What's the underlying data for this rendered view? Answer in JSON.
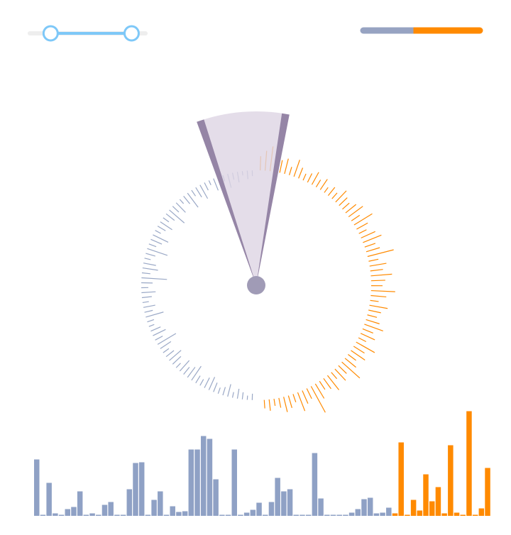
{
  "chart_data": {
    "type": "radial-dashboard",
    "slider": {
      "range": [
        0.18,
        0.88
      ],
      "limits": [
        0,
        1
      ],
      "color": "#7ec8f8"
    },
    "split": {
      "values": [
        43,
        57
      ],
      "colors": [
        "#97a3c2",
        "#ff8a00"
      ]
    },
    "radial": {
      "series": [
        {
          "color": "#9aa8c6",
          "values": [
            8,
            12,
            6,
            15,
            10,
            20,
            9,
            14,
            18,
            7,
            12,
            22,
            16,
            10,
            25,
            14,
            8,
            19,
            12,
            28,
            15,
            10,
            20,
            13,
            9,
            24,
            17,
            11,
            30,
            14,
            9,
            18,
            22,
            12,
            36,
            16,
            10,
            20,
            14,
            9,
            17,
            12,
            26,
            10,
            8,
            15,
            20,
            12,
            30,
            18,
            10,
            14,
            22,
            16,
            9,
            20,
            13,
            18,
            24,
            12,
            10,
            16,
            20,
            14,
            9,
            12,
            18,
            8,
            14,
            10,
            6,
            9
          ]
        },
        {
          "color": "#ff8a00",
          "values": [
            20,
            28,
            35,
            14,
            18,
            22,
            12,
            25,
            16,
            10,
            14,
            20,
            12,
            18,
            9,
            15,
            11,
            22,
            16,
            13,
            19,
            25,
            14,
            30,
            18,
            12,
            22,
            28,
            16,
            20,
            38,
            14,
            24,
            18,
            30,
            20,
            16,
            34,
            22,
            12,
            26,
            18,
            14,
            20,
            28,
            16,
            22,
            12,
            30,
            18,
            24,
            14,
            20,
            34,
            16,
            22,
            12,
            26,
            18,
            14,
            24,
            42,
            16,
            20,
            28,
            12,
            18,
            22,
            14,
            10,
            16,
            12
          ]
        }
      ]
    },
    "histogram": {
      "series": [
        {
          "color": "#8fa1c5",
          "values": [
            78,
            0,
            45,
            2,
            0,
            8,
            11,
            33,
            0,
            2,
            0,
            14,
            18,
            0,
            0,
            36,
            73,
            74,
            0,
            21,
            33,
            0,
            12,
            4,
            5,
            92,
            92,
            111,
            107,
            50,
            0,
            0,
            92,
            0,
            3,
            7,
            17,
            0,
            18,
            52,
            33,
            36,
            0,
            0,
            0,
            87,
            23,
            0,
            0,
            0,
            0,
            3,
            8,
            22,
            24,
            2,
            3,
            10
          ]
        },
        {
          "color": "#ff8a00",
          "values": [
            2,
            102,
            0,
            21,
            6,
            57,
            19,
            39,
            2,
            98,
            3,
            0,
            146,
            0,
            9,
            66
          ]
        }
      ]
    }
  }
}
